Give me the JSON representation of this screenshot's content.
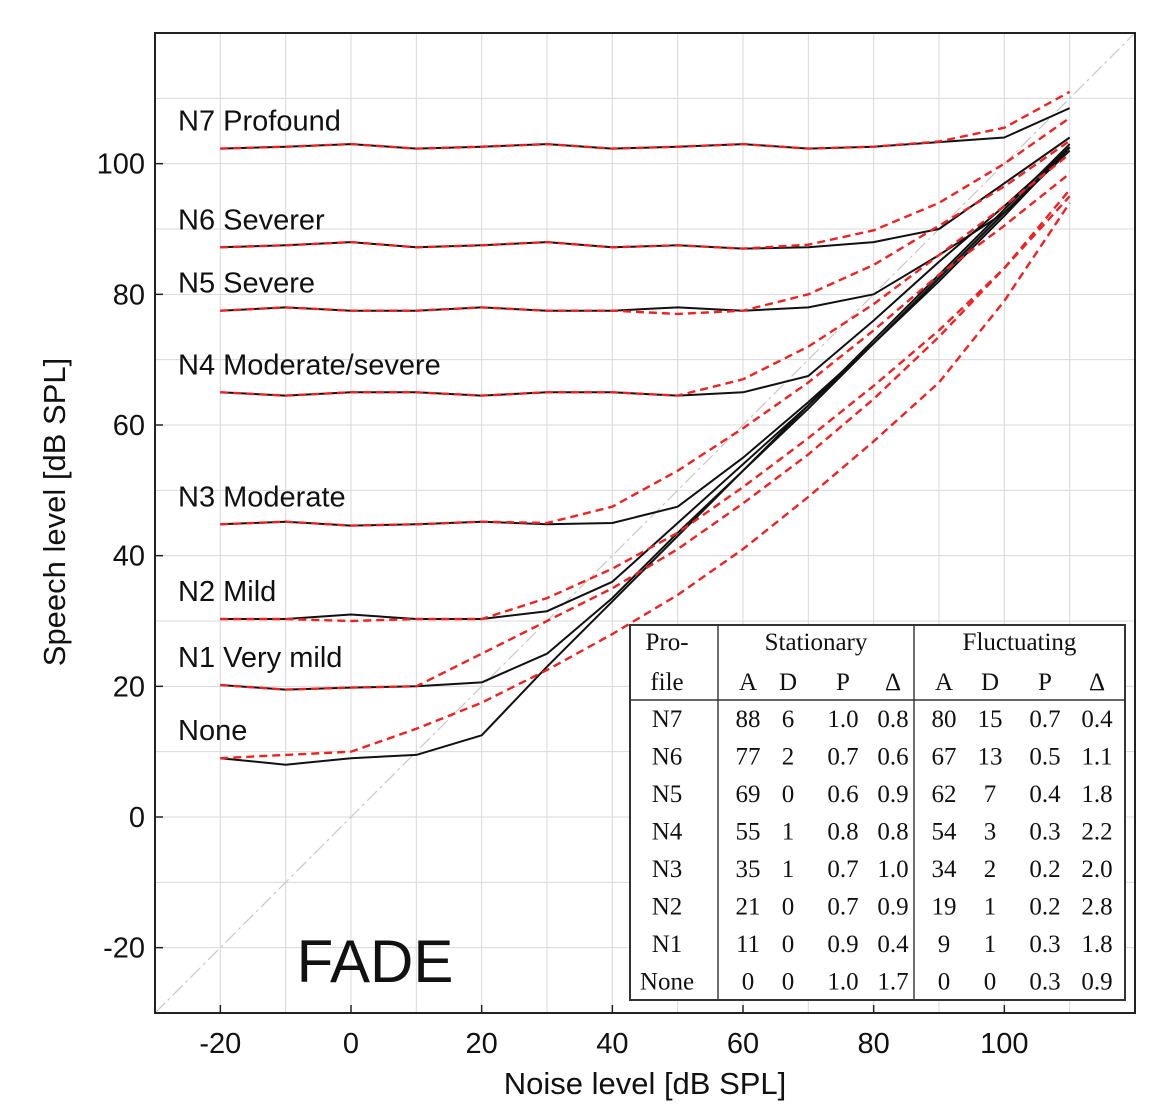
{
  "chart_data": {
    "type": "line",
    "title": "",
    "xlabel": "Noise level [dB SPL]",
    "ylabel": "Speech level [dB SPL]",
    "xlim": [
      -30,
      120
    ],
    "ylim": [
      -30,
      120
    ],
    "xticks": [
      -20,
      0,
      20,
      40,
      60,
      80,
      100
    ],
    "yticks": [
      -20,
      0,
      20,
      40,
      60,
      80,
      100
    ],
    "grid": true,
    "watermark": "FADE",
    "diagonal": "identity line (dashed, light grey)",
    "x": [
      -20,
      -10,
      0,
      10,
      20,
      30,
      40,
      50,
      60,
      70,
      80,
      90,
      100,
      110
    ],
    "series": [
      {
        "name": "N7 Profound",
        "label": "N7 Profound",
        "measured": [
          102.3,
          102.6,
          103.0,
          102.3,
          102.6,
          103.0,
          102.3,
          102.6,
          103.0,
          102.3,
          102.6,
          103.3,
          104.0,
          108.5
        ],
        "predicted": [
          102.3,
          102.6,
          103.0,
          102.3,
          102.6,
          103.0,
          102.3,
          102.6,
          103.0,
          102.3,
          102.6,
          103.4,
          105.5,
          111.0
        ]
      },
      {
        "name": "N6 Severer",
        "label": "N6 Severer",
        "measured": [
          87.2,
          87.5,
          88.0,
          87.2,
          87.5,
          88.0,
          87.2,
          87.5,
          87.0,
          87.2,
          88.0,
          90.0,
          97.0,
          104.0
        ],
        "predicted": [
          87.2,
          87.5,
          88.0,
          87.2,
          87.5,
          88.0,
          87.2,
          87.5,
          87.0,
          87.6,
          89.8,
          94.0,
          100.0,
          107.0
        ]
      },
      {
        "name": "N5 Severe",
        "label": "N5 Severe",
        "measured": [
          77.5,
          78.0,
          77.5,
          77.5,
          78.0,
          77.5,
          77.5,
          78.0,
          77.5,
          78.0,
          80.0,
          86.0,
          92.5,
          102.0
        ],
        "predicted": [
          77.5,
          78.0,
          77.5,
          77.5,
          78.0,
          77.5,
          77.5,
          77.0,
          77.5,
          80.0,
          84.5,
          90.5,
          96.5,
          103.5
        ]
      },
      {
        "name": "N4 Moderate/severe",
        "label": "N4 Moderate/severe",
        "measured": [
          65.0,
          64.5,
          65.0,
          65.0,
          64.5,
          65.0,
          65.0,
          64.5,
          65.0,
          67.5,
          76.0,
          85.0,
          93.5,
          102.5
        ],
        "predicted": [
          65.0,
          64.5,
          65.0,
          65.0,
          64.5,
          65.0,
          65.0,
          64.5,
          67.0,
          72.0,
          78.5,
          86.0,
          93.5,
          101.5
        ]
      },
      {
        "name": "N3 Moderate",
        "label": "N3 Moderate",
        "measured": [
          44.8,
          45.2,
          44.6,
          44.8,
          45.2,
          44.8,
          45.0,
          47.5,
          55.0,
          63.5,
          72.5,
          82.0,
          92.0,
          102.5
        ],
        "predicted": [
          44.8,
          45.2,
          44.6,
          44.8,
          45.2,
          45.0,
          47.5,
          53.0,
          59.5,
          66.5,
          74.5,
          83.0,
          90.5,
          98.5
        ]
      },
      {
        "name": "N2 Mild",
        "label": "N2 Mild",
        "measured": [
          30.3,
          30.3,
          31.0,
          30.3,
          30.3,
          31.5,
          36.0,
          45.0,
          54.0,
          63.0,
          72.5,
          82.5,
          92.5,
          102.5
        ],
        "predicted": [
          30.3,
          30.3,
          30.0,
          30.3,
          30.3,
          33.5,
          38.0,
          43.5,
          50.5,
          58.0,
          66.0,
          74.5,
          84.0,
          96.0
        ]
      },
      {
        "name": "N1 Very mild",
        "label": "N1 Very mild",
        "measured": [
          20.2,
          19.5,
          19.8,
          20.0,
          20.6,
          25.0,
          33.5,
          43.5,
          53.0,
          62.5,
          72.5,
          82.5,
          92.5,
          102.5
        ],
        "predicted": [
          20.2,
          19.5,
          19.8,
          20.0,
          25.0,
          30.0,
          35.0,
          41.0,
          48.0,
          55.5,
          64.0,
          73.5,
          84.0,
          95.0
        ]
      },
      {
        "name": "None",
        "label": "None",
        "measured": [
          9.0,
          8.0,
          9.0,
          9.5,
          12.5,
          23.0,
          33.0,
          43.0,
          53.0,
          63.0,
          73.0,
          83.0,
          93.0,
          103.0
        ],
        "predicted": [
          9.0,
          9.5,
          10.0,
          13.5,
          17.5,
          22.5,
          28.0,
          34.0,
          41.0,
          49.0,
          57.5,
          66.5,
          79.0,
          94.0
        ]
      }
    ],
    "legend_table": {
      "placement": "bottom-right",
      "header_row1": [
        "Pro-",
        "Stationary",
        "Fluctuating"
      ],
      "header_row2": [
        "file",
        "A",
        "D",
        "P",
        "Δ",
        "A",
        "D",
        "P",
        "Δ"
      ],
      "rows": [
        [
          "N7",
          "88",
          "6",
          "1.0",
          "0.8",
          "80",
          "15",
          "0.7",
          "0.4"
        ],
        [
          "N6",
          "77",
          "2",
          "0.7",
          "0.6",
          "67",
          "13",
          "0.5",
          "1.1"
        ],
        [
          "N5",
          "69",
          "0",
          "0.6",
          "0.9",
          "62",
          "7",
          "0.4",
          "1.8"
        ],
        [
          "N4",
          "55",
          "1",
          "0.8",
          "0.8",
          "54",
          "3",
          "0.3",
          "2.2"
        ],
        [
          "N3",
          "35",
          "1",
          "0.7",
          "1.0",
          "34",
          "2",
          "0.2",
          "2.0"
        ],
        [
          "N2",
          "21",
          "0",
          "0.7",
          "0.9",
          "19",
          "1",
          "0.2",
          "2.8"
        ],
        [
          "N1",
          "11",
          "0",
          "0.9",
          "0.4",
          "9",
          "1",
          "0.3",
          "1.8"
        ],
        [
          "None",
          "0",
          "0",
          "1.0",
          "1.7",
          "0",
          "0",
          "0.3",
          "0.9"
        ]
      ]
    },
    "colors": {
      "measured": "#111111",
      "predicted": "#ee2222",
      "grid": "#d8d8d8",
      "diagonal": "#c8c8c8",
      "axes": "#222222"
    }
  }
}
